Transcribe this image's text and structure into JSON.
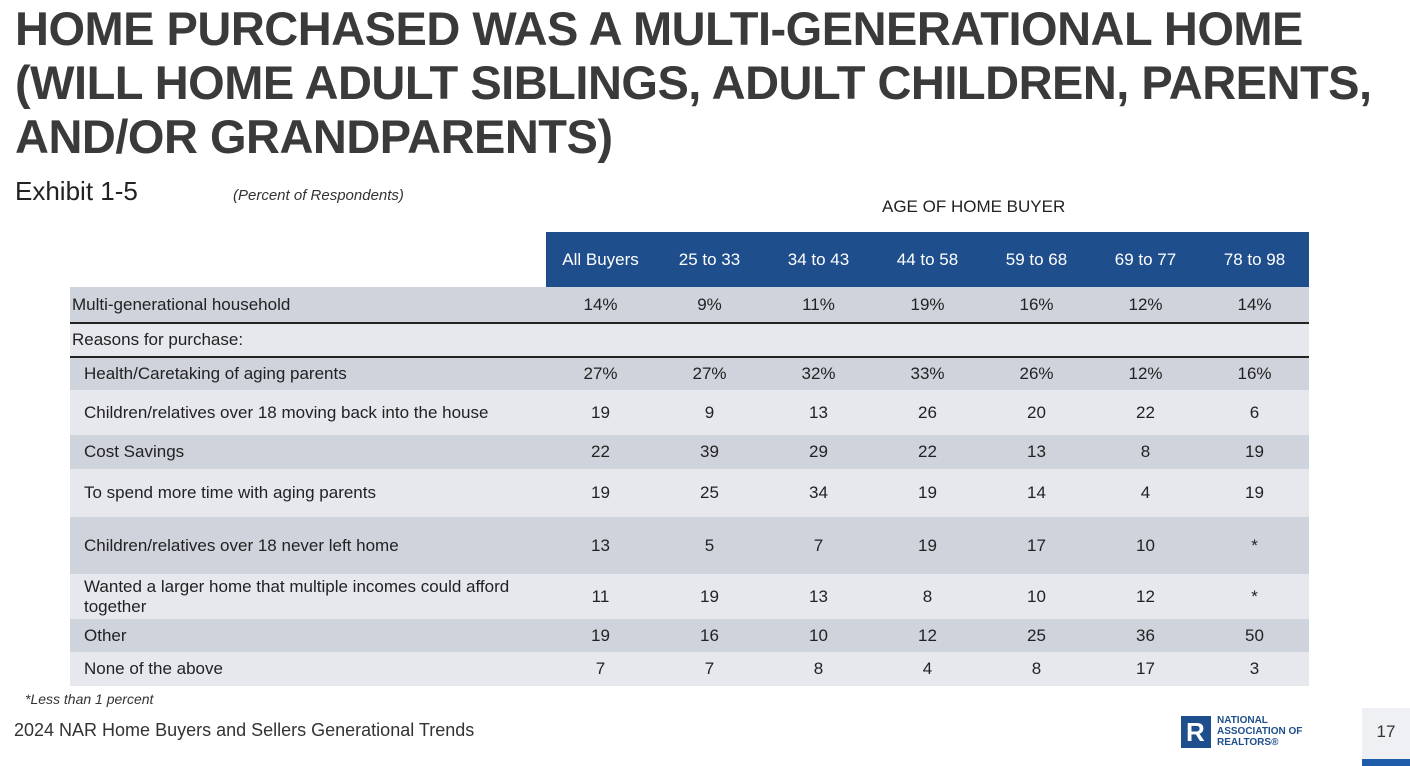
{
  "title": "HOME PURCHASED WAS A MULTI-GENERATIONAL HOME (WILL HOME ADULT SIBLINGS, ADULT CHILDREN, PARENTS, AND/OR GRANDPARENTS)",
  "exhibit": "Exhibit 1-5",
  "subtitle": "(Percent of Respondents)",
  "age_header": "AGE OF HOME BUYER",
  "columns": [
    "All Buyers",
    "25 to 33",
    "34 to 43",
    "44 to 58",
    "59 to 68",
    "69 to 77",
    "78 to 98"
  ],
  "rows": [
    {
      "label": "Multi-generational household",
      "values": [
        "14%",
        "9%",
        "11%",
        "19%",
        "16%",
        "12%",
        "14%"
      ]
    },
    {
      "label": "Reasons for purchase:",
      "values": [
        "",
        "",
        "",
        "",
        "",
        "",
        ""
      ]
    },
    {
      "label": "Health/Caretaking of aging parents",
      "values": [
        "27%",
        "27%",
        "32%",
        "33%",
        "26%",
        "12%",
        "16%"
      ]
    },
    {
      "label": "Children/relatives over 18 moving back into the house",
      "values": [
        "19",
        "9",
        "13",
        "26",
        "20",
        "22",
        "6"
      ]
    },
    {
      "label": "Cost Savings",
      "values": [
        "22",
        "39",
        "29",
        "22",
        "13",
        "8",
        "19"
      ]
    },
    {
      "label": "To spend more time with aging parents",
      "values": [
        "19",
        "25",
        "34",
        "19",
        "14",
        "4",
        "19"
      ]
    },
    {
      "label": "Children/relatives over 18 never left home",
      "values": [
        "13",
        "5",
        "7",
        "19",
        "17",
        "10",
        "*"
      ]
    },
    {
      "label": "Wanted a larger home that multiple incomes could afford together",
      "values": [
        "11",
        "19",
        "13",
        "8",
        "10",
        "12",
        "*"
      ]
    },
    {
      "label": "Other",
      "values": [
        "19",
        "16",
        "10",
        "12",
        "25",
        "36",
        "50"
      ]
    },
    {
      "label": "None of the above",
      "values": [
        "7",
        "7",
        "8",
        "4",
        "8",
        "17",
        "3"
      ]
    }
  ],
  "footnote": "*Less than 1 percent",
  "footer": "2024 NAR Home Buyers and Sellers Generational Trends",
  "logo": {
    "letter": "R",
    "lines": [
      "NATIONAL",
      "ASSOCIATION OF",
      "REALTORS®"
    ]
  },
  "page_number": "17",
  "colors": {
    "header_blue": "#1f4e8c",
    "row_dark": "#cfd3dc",
    "row_light": "#e6e8ee",
    "accent_bar": "#1f5ca9"
  }
}
